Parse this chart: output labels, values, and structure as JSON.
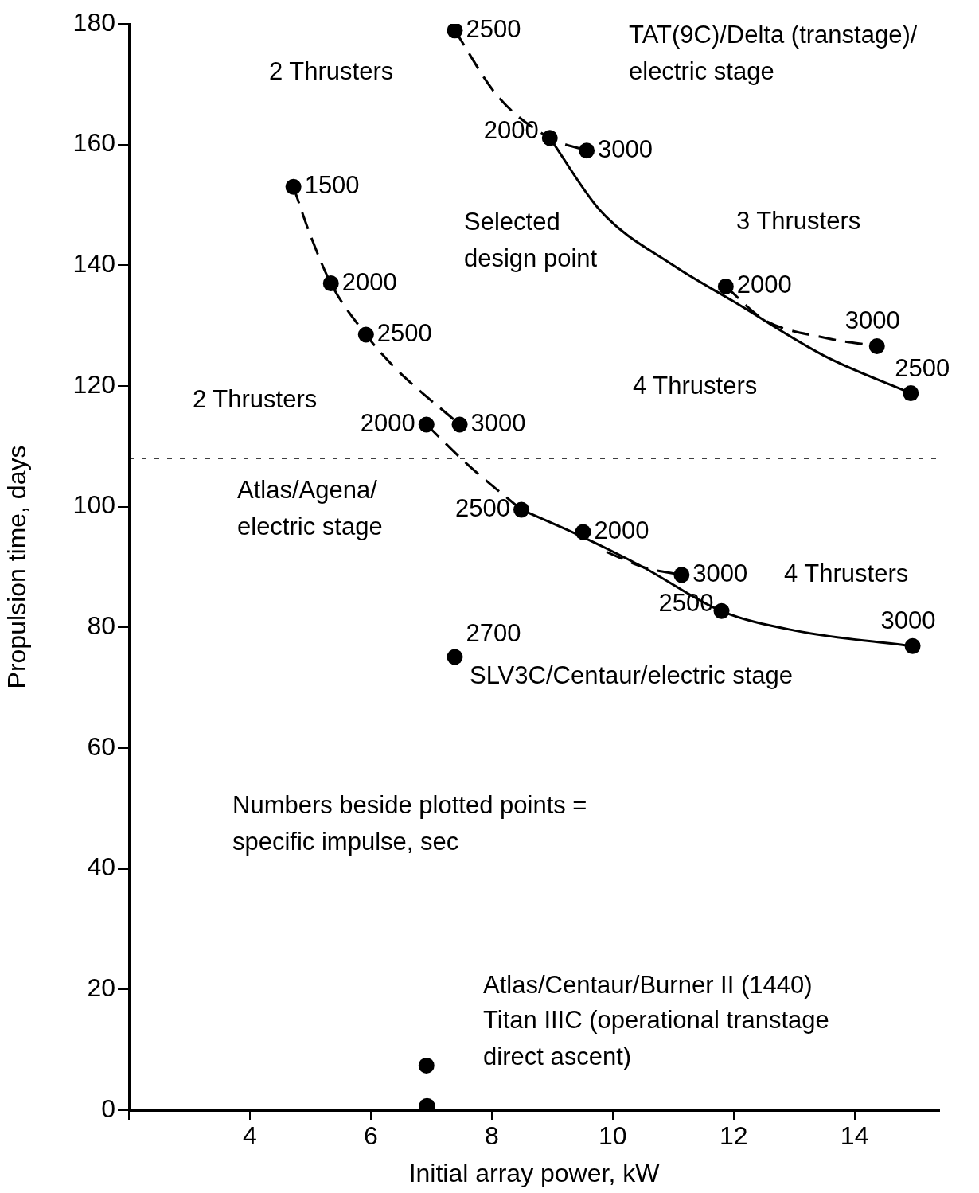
{
  "chart_data": {
    "type": "scatter",
    "xlabel": "Initial array power, kW",
    "ylabel": "Propulsion time, days",
    "xlim": [
      2,
      15.4
    ],
    "xticks": [
      {
        "value": 2,
        "label": null
      },
      4,
      6,
      8,
      10,
      12,
      14
    ],
    "ylim": [
      0,
      180
    ],
    "yticks": [
      0,
      20,
      40,
      60,
      80,
      100,
      120,
      140,
      160,
      180
    ],
    "grid": false,
    "legend": false,
    "ref_lines": [
      {
        "axis": "y",
        "value": 108,
        "line_style": "dotted",
        "color": "#000000"
      }
    ],
    "annotations": [
      "TAT(9C)/Delta (transtage)/\nelectric stage",
      "2 Thrusters",
      "Selected\ndesign point",
      "3 Thrusters",
      "4 Thrusters",
      "2 Thrusters",
      "Atlas/Agena/\nelectric stage",
      "4 Thrusters",
      "SLV3C/Centaur/electric stage",
      "Numbers beside plotted points =\nspecific impulse, sec",
      "Atlas/Centaur/Burner II (1440)",
      "Titan IIIC (operational transtage\ndirect ascent)",
      {
        "text": "1500",
        "x": 4.72,
        "y": 153
      },
      {
        "text": "2000",
        "x": 5.34,
        "y": 137
      },
      {
        "text": "2500",
        "x": 5.92,
        "y": 128.5
      },
      {
        "text": "3000",
        "x": 7.47,
        "y": 113.6
      },
      {
        "text": "2000",
        "x": 6.92,
        "y": 113.6
      },
      {
        "text": "2500",
        "x": 8.49,
        "y": 99.5
      },
      {
        "text": "2000",
        "x": 9.51,
        "y": 95.8
      },
      {
        "text": "3000",
        "x": 11.14,
        "y": 88.7
      },
      {
        "text": "2500",
        "x": 11.8,
        "y": 82.7
      },
      {
        "text": "3000",
        "x": 14.96,
        "y": 76.9
      },
      {
        "text": "2700",
        "x": 7.39,
        "y": 75.1
      },
      {
        "text": "2500",
        "x": 7.39,
        "y": 178.9
      },
      {
        "text": "2000",
        "x": 8.96,
        "y": 161.1
      },
      {
        "text": "3000",
        "x": 9.57,
        "y": 159
      },
      {
        "text": "2000",
        "x": 11.87,
        "y": 136.5
      },
      {
        "text": "3000",
        "x": 14.37,
        "y": 126.6
      },
      {
        "text": "2500",
        "x": 14.93,
        "y": 118.8
      }
    ],
    "series": [
      {
        "type": "line",
        "marker": "none",
        "line_style": "dashed",
        "color": "#000000",
        "x": [
          4.72,
          5.0,
          5.34,
          5.92,
          6.4,
          7.47
        ],
        "values": [
          153,
          145,
          137,
          128.5,
          123,
          113.6
        ]
      },
      {
        "type": "line",
        "marker": "none",
        "line_style": "dashed",
        "color": "#000000",
        "x": [
          6.92,
          7.6,
          8.49
        ],
        "values": [
          113.6,
          107,
          99.5
        ]
      },
      {
        "type": "line",
        "marker": "none",
        "line_style": "solid",
        "color": "#000000",
        "x": [
          8.49,
          9.5,
          10.5,
          11.8,
          13,
          14.96
        ],
        "values": [
          99.5,
          95,
          90,
          82.7,
          79.5,
          76.9
        ]
      },
      {
        "type": "line",
        "marker": "none",
        "line_style": "dashed",
        "color": "#000000",
        "x": [
          9.9,
          10.5,
          11.14
        ],
        "values": [
          92.5,
          90,
          88.7
        ]
      },
      {
        "type": "line",
        "marker": "none",
        "line_style": "dashed",
        "color": "#000000",
        "x": [
          7.39,
          8.1,
          8.96,
          9.57
        ],
        "values": [
          178.9,
          168,
          161.1,
          159
        ]
      },
      {
        "type": "line",
        "marker": "none",
        "line_style": "solid",
        "color": "#000000",
        "x": [
          8.96,
          9.8,
          11,
          12,
          13.5,
          14.93
        ],
        "values": [
          161.1,
          149,
          140,
          134,
          125,
          118.8
        ]
      },
      {
        "type": "line",
        "marker": "none",
        "line_style": "dashed",
        "color": "#000000",
        "x": [
          11.87,
          12.5,
          13.5,
          14.37
        ],
        "values": [
          136.5,
          131,
          128,
          126.6
        ]
      },
      {
        "marker": "circle",
        "color": "#000000",
        "x": [
          4.72,
          5.34,
          5.92,
          7.47,
          6.92,
          8.49,
          9.51,
          11.14,
          11.8,
          14.96,
          7.39,
          7.39,
          8.96,
          9.57,
          11.87,
          14.37,
          14.93,
          6.92,
          6.93
        ],
        "values": [
          153,
          137,
          128.5,
          113.6,
          113.6,
          99.5,
          95.8,
          88.7,
          82.7,
          76.9,
          75.1,
          178.9,
          161.1,
          159,
          136.5,
          126.6,
          118.8,
          7.4,
          0.7
        ]
      }
    ]
  }
}
